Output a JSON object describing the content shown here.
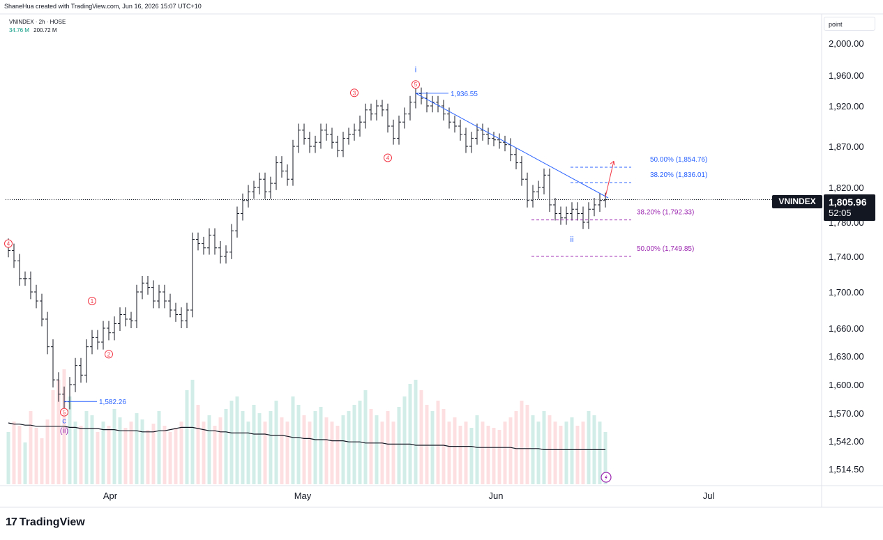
{
  "header": {
    "attribution": "ShaneHua created with TradingView.com, Jun 16, 2026 15:07 UTC+10",
    "symbol_line": "VNINDEX · 2h · HOSE",
    "volume_1": "34.76 M",
    "volume_2": "200.72 M"
  },
  "price_scale": {
    "mode_label": "point",
    "current_symbol": "VNINDEX",
    "current_price": "1,805.96",
    "countdown": "52:05"
  },
  "footer": {
    "logo_text": "TradingView",
    "logo_mark": "17"
  },
  "colors": {
    "up_volume": "#089981",
    "down_volume": "#f23645",
    "fib_blue": "#2962ff",
    "fib_purple": "#9c27b0",
    "wave_red": "#f23645",
    "trendline": "#2962ff",
    "bar": "#131722",
    "line": "#131722"
  },
  "chart_data": {
    "type": "line",
    "title": "VNINDEX · 2h · HOSE",
    "ylim": [
      1500,
      2015
    ],
    "y_ticks": [
      "2,000.00",
      "1,960.00",
      "1,920.00",
      "1,870.00",
      "1,820.00",
      "1,780.00",
      "1,740.00",
      "1,700.00",
      "1,660.00",
      "1,630.00",
      "1,600.00",
      "1,570.00",
      "1,542.00",
      "1,514.50"
    ],
    "x_ticks": [
      "Apr",
      "May",
      "Jun",
      "Jul"
    ],
    "series": [
      {
        "values": [
          1747,
          1735,
          1715,
          1715,
          1700,
          1690,
          1670,
          1640,
          1605,
          1590,
          1582,
          1600,
          1620,
          1610,
          1640,
          1650,
          1645,
          1660,
          1655,
          1665,
          1675,
          1670,
          1668,
          1700,
          1710,
          1705,
          1690,
          1700,
          1690,
          1680,
          1675,
          1668,
          1680,
          1760,
          1755,
          1750,
          1765,
          1750,
          1740,
          1745,
          1770,
          1790,
          1805,
          1815,
          1820,
          1830,
          1815,
          1825,
          1850,
          1840,
          1830,
          1870,
          1890,
          1880,
          1870,
          1875,
          1890,
          1885,
          1875,
          1865,
          1880,
          1885,
          1890,
          1900,
          1915,
          1910,
          1920,
          1915,
          1895,
          1880,
          1900,
          1910,
          1925,
          1936,
          1930,
          1920,
          1925,
          1920,
          1910,
          1900,
          1895,
          1885,
          1870,
          1880,
          1890,
          1885,
          1880,
          1878,
          1875,
          1872,
          1860,
          1850,
          1830,
          1805,
          1815,
          1820,
          1835,
          1800,
          1790,
          1785,
          1790,
          1795,
          1790,
          1780,
          1795,
          1800,
          1805,
          1806
        ]
      }
    ],
    "volume": [
      0.25,
      0.3,
      0.28,
      0.2,
      0.35,
      0.27,
      0.22,
      0.31,
      0.45,
      0.5,
      0.55,
      0.42,
      0.3,
      0.28,
      0.35,
      0.33,
      0.25,
      0.3,
      0.28,
      0.36,
      0.32,
      0.27,
      0.3,
      0.34,
      0.31,
      0.26,
      0.29,
      0.35,
      0.28,
      0.25,
      0.27,
      0.3,
      0.45,
      0.5,
      0.38,
      0.3,
      0.33,
      0.28,
      0.32,
      0.36,
      0.4,
      0.42,
      0.35,
      0.3,
      0.38,
      0.34,
      0.3,
      0.35,
      0.4,
      0.32,
      0.3,
      0.42,
      0.38,
      0.33,
      0.3,
      0.35,
      0.37,
      0.32,
      0.3,
      0.28,
      0.33,
      0.35,
      0.38,
      0.4,
      0.45,
      0.36,
      0.33,
      0.3,
      0.35,
      0.3,
      0.37,
      0.42,
      0.48,
      0.5,
      0.45,
      0.38,
      0.35,
      0.4,
      0.36,
      0.3,
      0.32,
      0.28,
      0.3,
      0.27,
      0.33,
      0.3,
      0.28,
      0.27,
      0.26,
      0.3,
      0.32,
      0.35,
      0.4,
      0.38,
      0.33,
      0.3,
      0.35,
      0.33,
      0.3,
      0.28,
      0.3,
      0.32,
      0.28,
      0.3,
      0.35,
      0.33,
      0.3,
      0.25
    ],
    "volume_ma": [
      0.55,
      0.54,
      0.54,
      0.53,
      0.53,
      0.52,
      0.52,
      0.52,
      0.52,
      0.52,
      0.52,
      0.51,
      0.51,
      0.5,
      0.5,
      0.5,
      0.5,
      0.49,
      0.49,
      0.49,
      0.48,
      0.48,
      0.48,
      0.48,
      0.47,
      0.47,
      0.47,
      0.48,
      0.48,
      0.49,
      0.5,
      0.51,
      0.51,
      0.51,
      0.5,
      0.49,
      0.48,
      0.48,
      0.47,
      0.47,
      0.46,
      0.46,
      0.46,
      0.46,
      0.45,
      0.45,
      0.45,
      0.44,
      0.44,
      0.44,
      0.43,
      0.42,
      0.42,
      0.41,
      0.41,
      0.4,
      0.4,
      0.4,
      0.39,
      0.39,
      0.39,
      0.38,
      0.38,
      0.38,
      0.37,
      0.37,
      0.37,
      0.37,
      0.36,
      0.36,
      0.36,
      0.36,
      0.36,
      0.35,
      0.35,
      0.35,
      0.35,
      0.35,
      0.35,
      0.34,
      0.34,
      0.34,
      0.34,
      0.34,
      0.33,
      0.33,
      0.33,
      0.33,
      0.33,
      0.33,
      0.33,
      0.32,
      0.32,
      0.32,
      0.32,
      0.32,
      0.31,
      0.31,
      0.31,
      0.31,
      0.31,
      0.31,
      0.31,
      0.31,
      0.31,
      0.31,
      0.31,
      0.31
    ],
    "annotations": {
      "wave_labels_red": [
        {
          "text": "4",
          "bar": 0,
          "price": 1755
        },
        {
          "text": "1",
          "bar": 15,
          "price": 1690
        },
        {
          "text": "2",
          "bar": 18,
          "price": 1632
        },
        {
          "text": "5",
          "bar": 10,
          "price": 1571
        },
        {
          "text": "3",
          "bar": 62,
          "price": 1937
        },
        {
          "text": "4",
          "bar": 68,
          "price": 1856
        },
        {
          "text": "5",
          "bar": 73,
          "price": 1948
        }
      ],
      "wave_labels_blue": [
        {
          "text": "i",
          "bar": 73,
          "price": 1964
        },
        {
          "text": "c",
          "bar": 10,
          "price": 1560
        },
        {
          "text": "ii",
          "bar": 101,
          "price": 1757
        }
      ],
      "wave_labels_purple": [
        {
          "text": "(ii)",
          "bar": 10,
          "price": 1550
        }
      ],
      "price_labels": [
        {
          "text": "1,936.55",
          "bar": 73,
          "price": 1936.55
        },
        {
          "text": "1,582.26",
          "bar": 10,
          "price": 1582.26
        }
      ],
      "fib_levels": [
        {
          "text": "50.00% (1,854.76)",
          "price": 1854.76,
          "color": "fib_blue"
        },
        {
          "text": "38.20% (1,836.01)",
          "price": 1836.01,
          "color": "fib_blue"
        },
        {
          "text": "38.20% (1,792.33)",
          "price": 1792.33,
          "color": "fib_purple"
        },
        {
          "text": "50.00% (1,749.85)",
          "price": 1749.85,
          "color": "fib_purple"
        }
      ]
    }
  }
}
